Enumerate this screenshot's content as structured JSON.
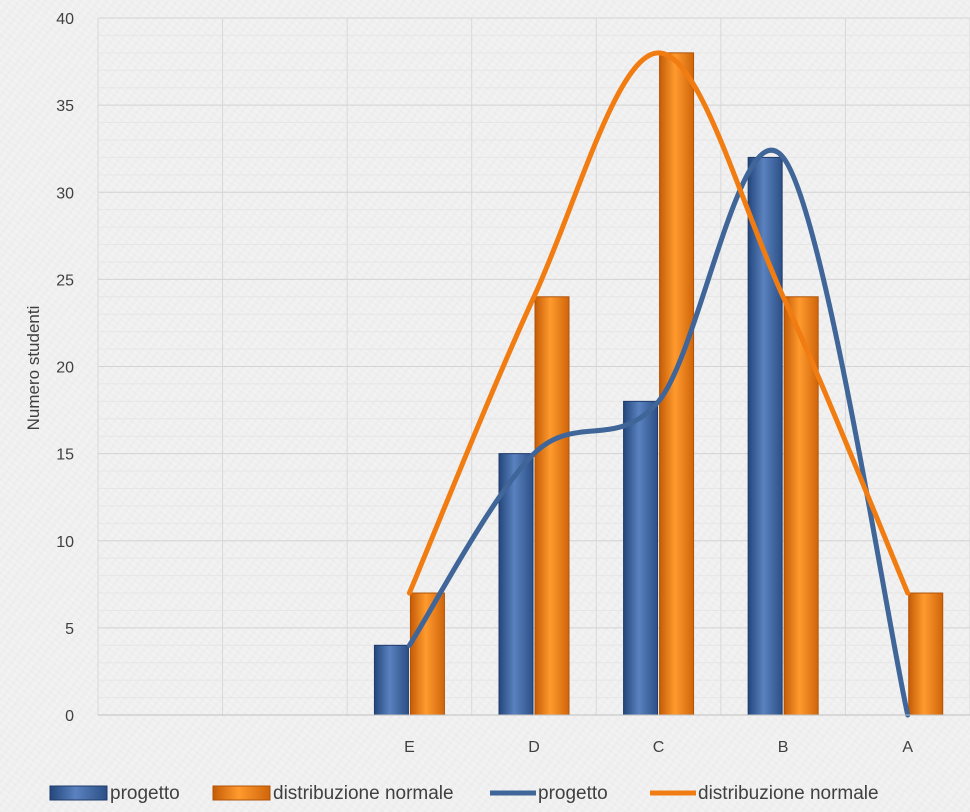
{
  "chart_data": {
    "type": "bar",
    "categories": [
      "",
      "",
      "E",
      "D",
      "C",
      "B",
      "A"
    ],
    "ylabel": "Numero studenti",
    "xlabel": "",
    "ylim": [
      0,
      40
    ],
    "yticks": [
      0,
      5,
      10,
      15,
      20,
      25,
      30,
      35,
      40
    ],
    "grid": true,
    "legend_position": "bottom",
    "series": [
      {
        "name": "progetto",
        "kind": "bar",
        "color": "#3b64a0",
        "values": [
          null,
          null,
          4,
          15,
          18,
          32,
          0
        ]
      },
      {
        "name": "distribuzione normale",
        "kind": "bar",
        "color": "#f07c12",
        "values": [
          null,
          null,
          7,
          24,
          38,
          24,
          7
        ]
      },
      {
        "name": "progetto",
        "kind": "line",
        "smooth": true,
        "color": "#3f6599",
        "values": [
          null,
          null,
          4,
          15,
          18,
          32,
          0
        ]
      },
      {
        "name": "distribuzione normale",
        "kind": "line",
        "smooth": true,
        "color": "#f07c12",
        "values": [
          null,
          null,
          7,
          24,
          38,
          24,
          7
        ]
      }
    ]
  }
}
